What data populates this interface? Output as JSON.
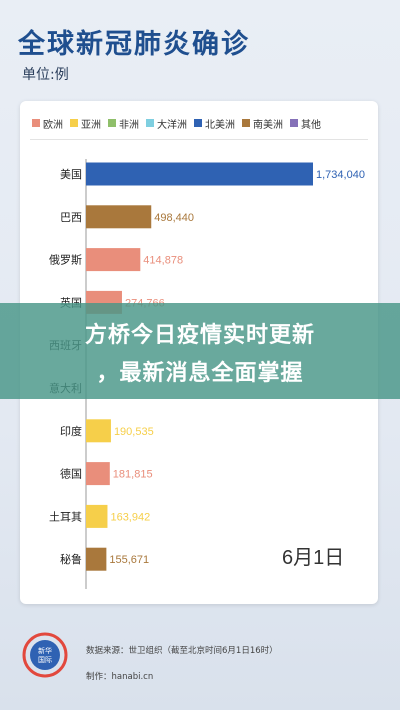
{
  "header": {
    "title": "全球新冠肺炎确诊",
    "unit": "单位:例"
  },
  "legend": [
    {
      "label": "欧洲",
      "color": "#e98e7b"
    },
    {
      "label": "亚洲",
      "color": "#f6cf4a"
    },
    {
      "label": "非洲",
      "color": "#8fbf6a"
    },
    {
      "label": "大洋洲",
      "color": "#7fcfe0"
    },
    {
      "label": "北美洲",
      "color": "#2f62b3"
    },
    {
      "label": "南美洲",
      "color": "#a9783c"
    },
    {
      "label": "其他",
      "color": "#8571b8"
    }
  ],
  "chart_data": {
    "type": "bar",
    "orientation": "horizontal",
    "categories": [
      "美国",
      "巴西",
      "俄罗斯",
      "英国",
      "西班牙",
      "意大利",
      "印度",
      "德国",
      "土耳其",
      "秘鲁"
    ],
    "values": [
      1734040,
      498440,
      414878,
      274766,
      null,
      null,
      190535,
      181815,
      163942,
      155671
    ],
    "value_labels": [
      "1,734,040",
      "498,440",
      "414,878",
      "274,766",
      "",
      "233,019",
      "190,535",
      "181,815",
      "163,942",
      "155,671"
    ],
    "continents": [
      "北美洲",
      "南美洲",
      "欧洲",
      "欧洲",
      "欧洲",
      "欧洲",
      "亚洲",
      "欧洲",
      "亚洲",
      "南美洲"
    ],
    "xlim": [
      0,
      1734040
    ],
    "grid": false,
    "legend_position": "top"
  },
  "date": "6月1日",
  "banner": {
    "line1": "方桥今日疫情实时更新",
    "line2": "，最新消息全面掌握"
  },
  "footer": {
    "logo_text": "新华国际",
    "source": "数据来源：世卫组织（截至北京时间6月1日16时）",
    "maker": "制作：hanabi.cn"
  }
}
